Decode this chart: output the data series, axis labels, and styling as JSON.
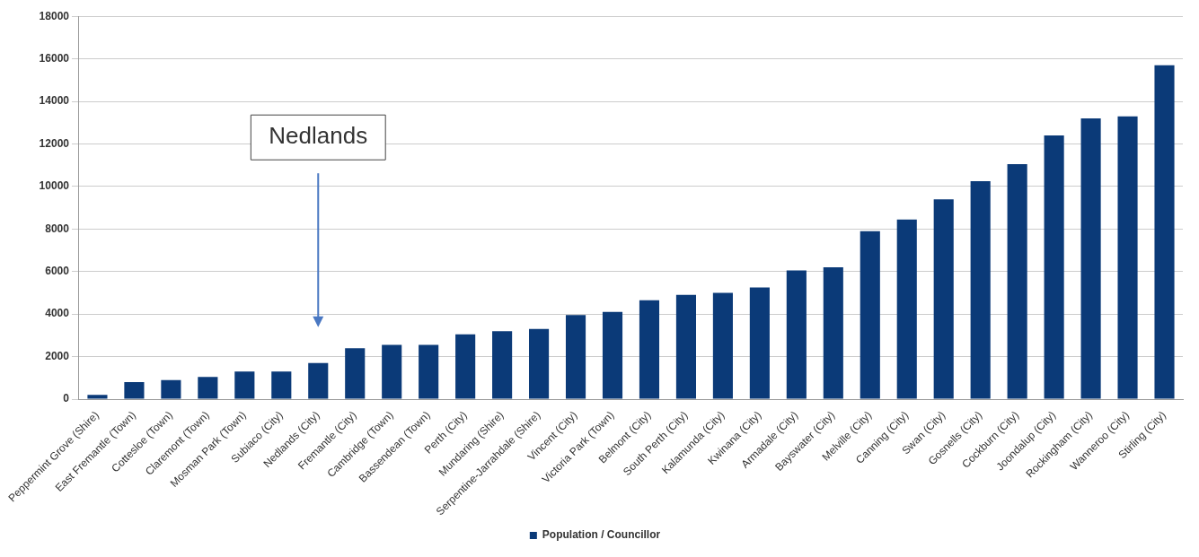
{
  "chart_data": {
    "type": "bar",
    "categories": [
      "Peppermint Grove (Shire)",
      "East Fremantle (Town)",
      "Cottesloe (Town)",
      "Claremont (Town)",
      "Mosman Park (Town)",
      "Subiaco (City)",
      "Nedlands (City)",
      "Fremantle (City)",
      "Cambridge (Town)",
      "Bassendean (Town)",
      "Perth (City)",
      "Mundaring (Shire)",
      "Serpentine-Jarrahdale (Shire)",
      "Vincent (City)",
      "Victoria Park (Town)",
      "Belmont (City)",
      "South Perth (City)",
      "Kalamunda (City)",
      "Kwinana (City)",
      "Armadale (City)",
      "Bayswater (City)",
      "Melville (City)",
      "Canning (City)",
      "Swan (City)",
      "Gosnells (City)",
      "Cockburn (City)",
      "Joondalup (City)",
      "Rockingham (City)",
      "Wanneroo (City)",
      "Stirling (City)"
    ],
    "series": [
      {
        "name": "Population / Councillor",
        "color": "#0b3a78",
        "values": [
          200,
          800,
          900,
          1050,
          1300,
          1300,
          1700,
          2400,
          2550,
          2550,
          3050,
          3200,
          3300,
          3950,
          4100,
          4650,
          4900,
          5000,
          5250,
          6050,
          6200,
          7900,
          8450,
          9400,
          10250,
          11050,
          12400,
          13200,
          13300,
          15700
        ]
      }
    ],
    "ylim": [
      0,
      18000
    ],
    "yticks": [
      0,
      2000,
      4000,
      6000,
      8000,
      10000,
      12000,
      14000,
      16000,
      18000
    ],
    "grid": "y",
    "legend": "bottom",
    "annotations": [
      "Nedlands"
    ]
  }
}
